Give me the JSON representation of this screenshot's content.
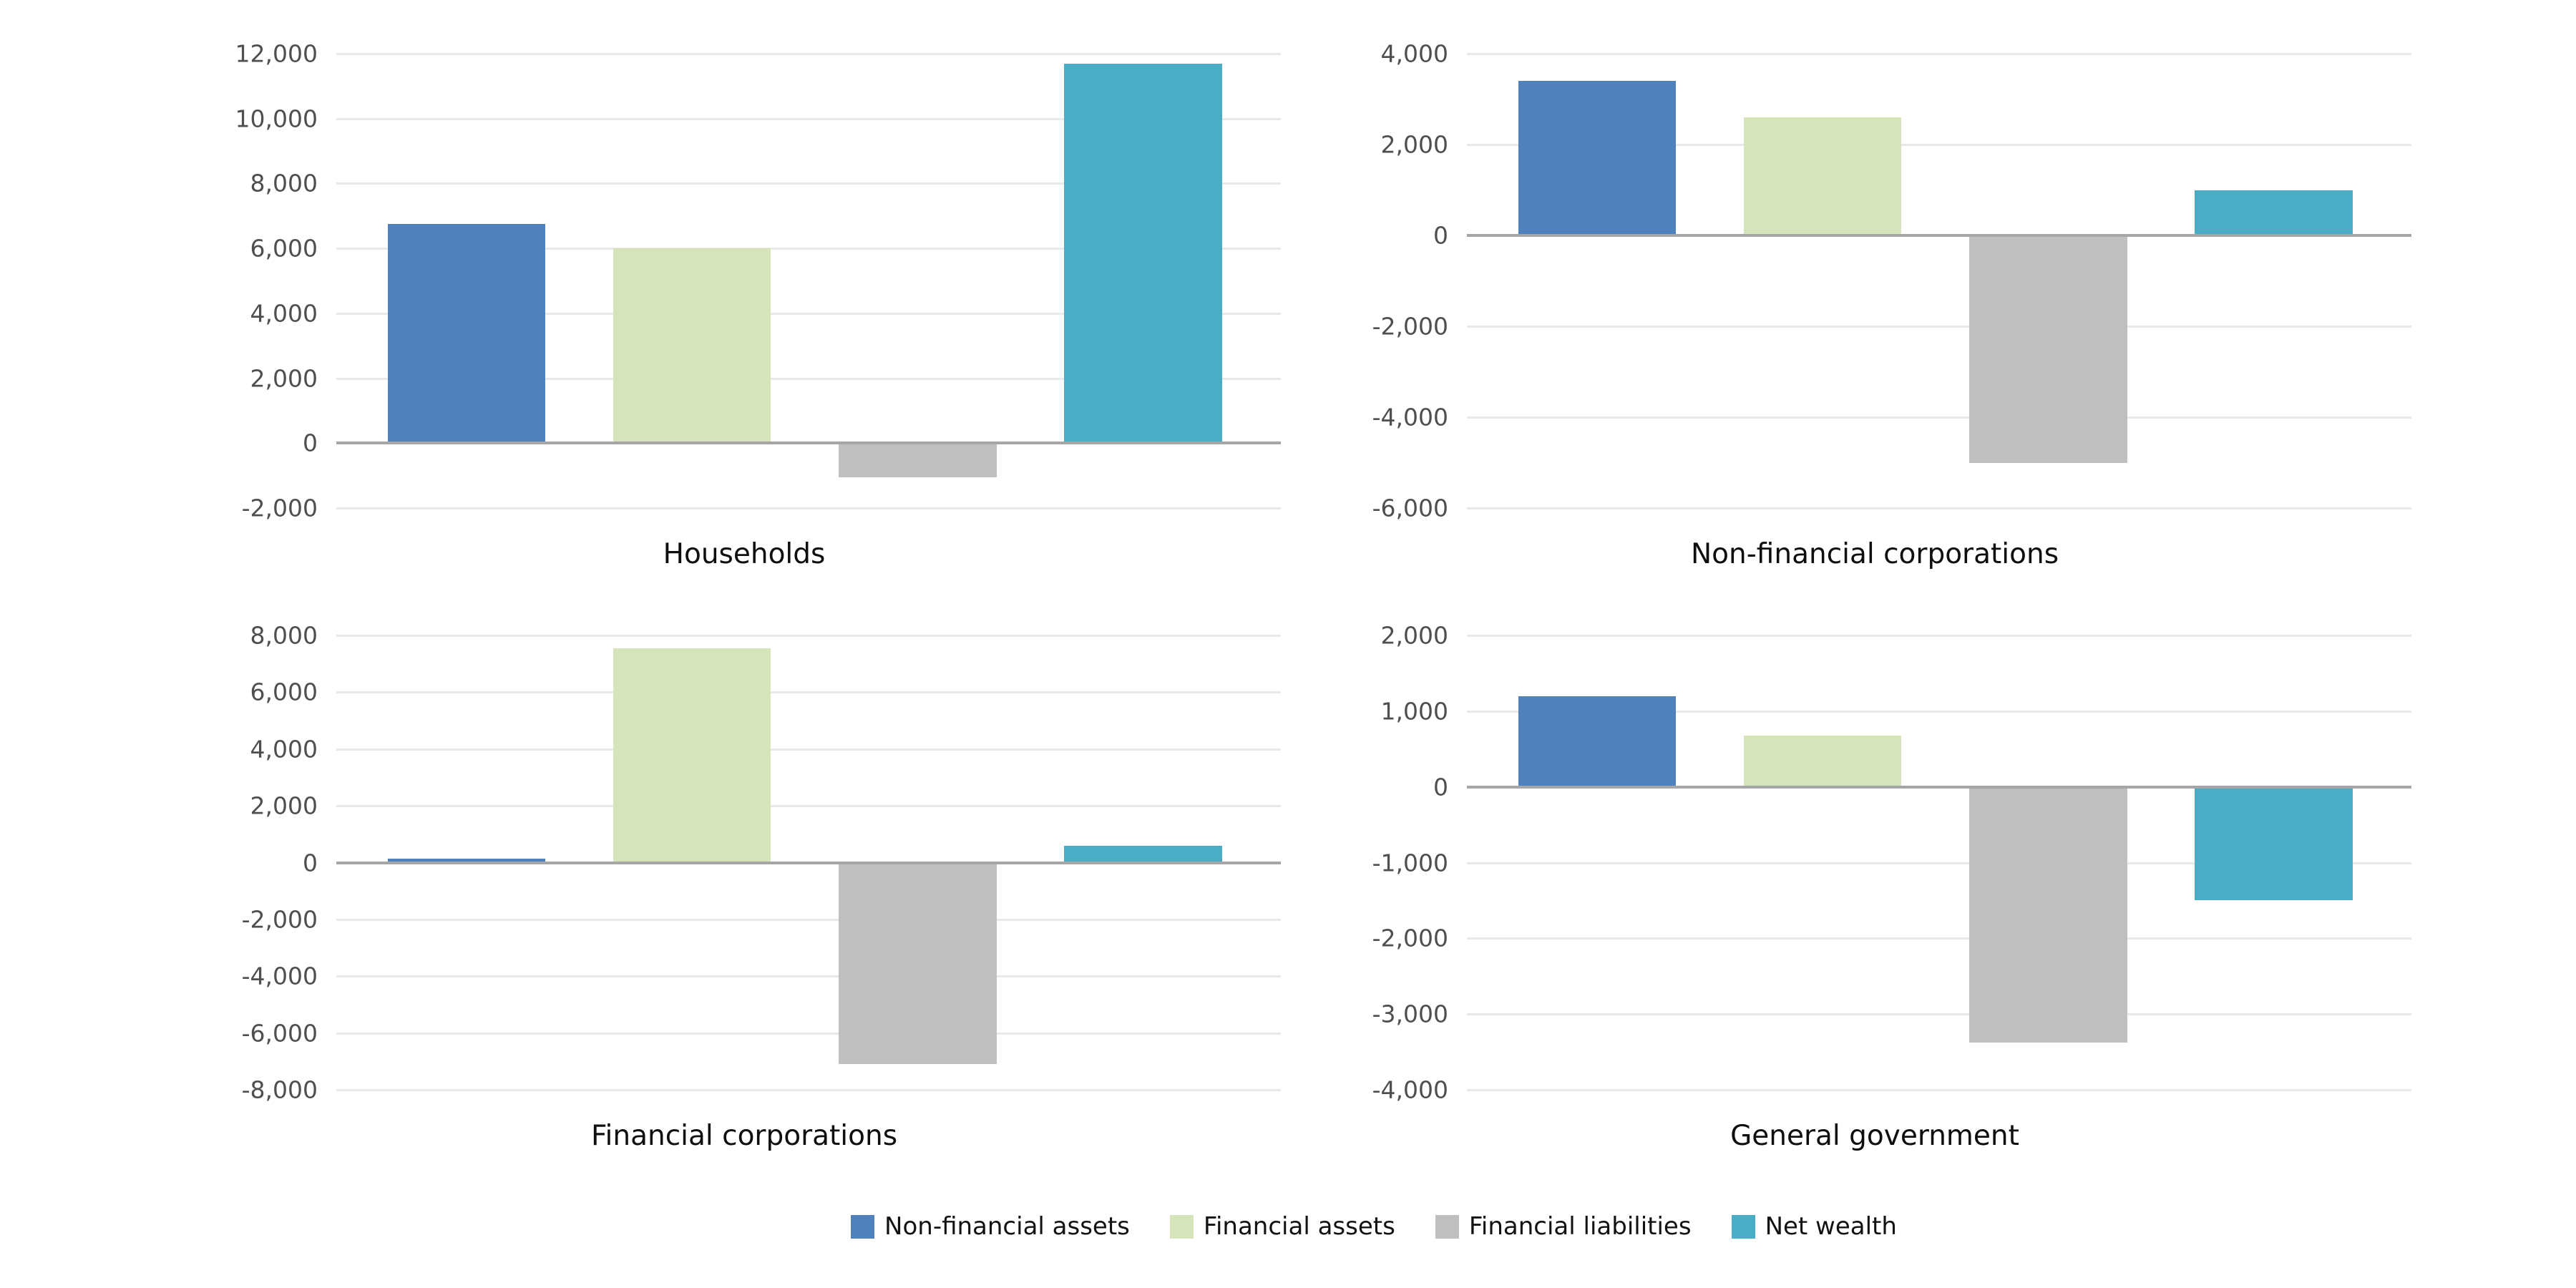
{
  "page": {
    "background": "#ffffff"
  },
  "style": {
    "gridline_color": "#e9e9e9",
    "zero_line_color": "#a6a6a6",
    "tick_label_color": "#4f4f4f",
    "title_color": "#0f0f0f"
  },
  "legend": {
    "position": "bottom-center",
    "items": [
      {
        "label": "Non-financial assets",
        "color": "#4f81bd"
      },
      {
        "label": "Financial assets",
        "color": "#d6e4bc"
      },
      {
        "label": "Financial liabilities",
        "color": "#bfbfbf"
      },
      {
        "label": "Net wealth",
        "color": "#4bacc6"
      }
    ]
  },
  "chart_data": [
    {
      "type": "bar",
      "title": "Households",
      "categories": [
        "Non-financial assets",
        "Financial assets",
        "Financial liabilities",
        "Net wealth"
      ],
      "values": [
        6750,
        6000,
        -1050,
        11700
      ],
      "xlabel": "",
      "ylabel": "",
      "ylim": [
        -2000,
        12000
      ],
      "yticks": [
        -2000,
        0,
        2000,
        4000,
        6000,
        8000,
        10000,
        12000
      ],
      "grid": true
    },
    {
      "type": "bar",
      "title": "Non-financial corporations",
      "categories": [
        "Non-financial assets",
        "Financial assets",
        "Financial liabilities",
        "Net wealth"
      ],
      "values": [
        3400,
        2600,
        -5000,
        1000
      ],
      "xlabel": "",
      "ylabel": "",
      "ylim": [
        -6000,
        4000
      ],
      "yticks": [
        -6000,
        -4000,
        -2000,
        0,
        2000,
        4000
      ],
      "grid": true
    },
    {
      "type": "bar",
      "title": "Financial corporations",
      "categories": [
        "Non-financial assets",
        "Financial assets",
        "Financial liabilities",
        "Net wealth"
      ],
      "values": [
        150,
        7550,
        -7100,
        600
      ],
      "xlabel": "",
      "ylabel": "",
      "ylim": [
        -8000,
        8000
      ],
      "yticks": [
        -8000,
        -6000,
        -4000,
        -2000,
        0,
        2000,
        4000,
        6000,
        8000
      ],
      "grid": true
    },
    {
      "type": "bar",
      "title": "General government",
      "categories": [
        "Non-financial assets",
        "Financial assets",
        "Financial liabilities",
        "Net wealth"
      ],
      "values": [
        1200,
        680,
        -3380,
        -1500
      ],
      "xlabel": "",
      "ylabel": "",
      "ylim": [
        -4000,
        2000
      ],
      "yticks": [
        -4000,
        -3000,
        -2000,
        -1000,
        0,
        1000,
        2000
      ],
      "grid": true
    }
  ]
}
